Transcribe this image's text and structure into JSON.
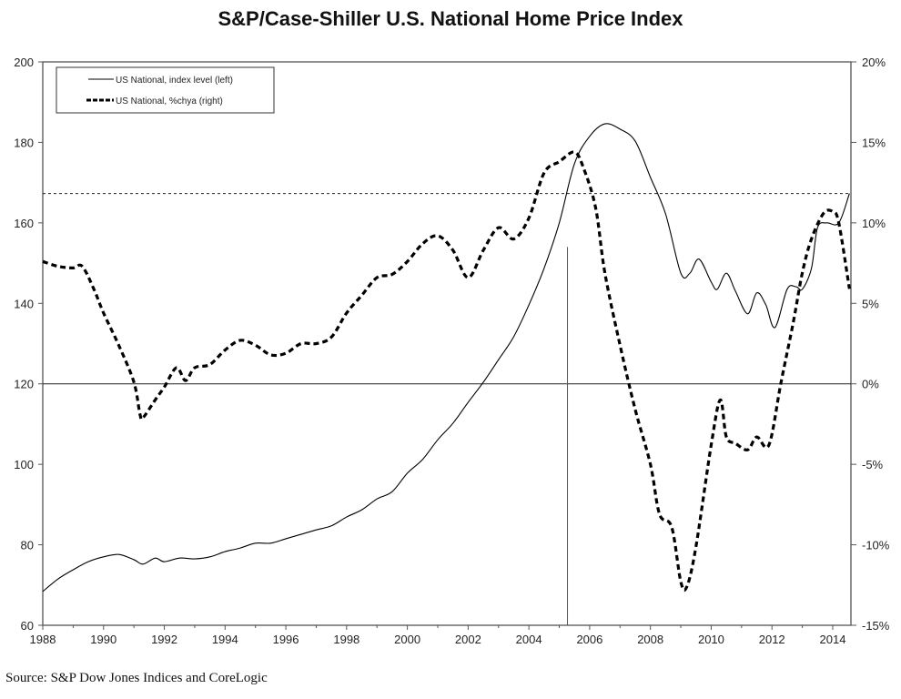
{
  "chart_data": {
    "type": "line",
    "title": "S&P/Case-Shiller U.S. National Home Price Index",
    "source": "Source: S&P Dow Jones Indices and CoreLogic",
    "legend_position": "top-left",
    "grid": false,
    "x_ticks": [
      "1988",
      "1990",
      "1992",
      "1994",
      "1996",
      "1998",
      "2000",
      "2002",
      "2004",
      "2006",
      "2008",
      "2010",
      "2012",
      "2014"
    ],
    "xlim": [
      1988,
      2014.6
    ],
    "y_left": {
      "ylim": [
        60,
        200
      ],
      "ticks": [
        "60",
        "80",
        "100",
        "120",
        "140",
        "160",
        "180",
        "200"
      ]
    },
    "y_right": {
      "ylim": [
        -15,
        20
      ],
      "ticks": [
        "-15%",
        "-10%",
        "-5%",
        "0%",
        "5%",
        "10%",
        "15%",
        "20%"
      ]
    },
    "reference_lines": [
      {
        "axis": "y_left",
        "value": 167.3,
        "style": "dotted"
      },
      {
        "axis": "y_left",
        "value": 120,
        "style": "solid"
      },
      {
        "axis": "x",
        "value": 2005.27,
        "style": "solid"
      }
    ],
    "series": [
      {
        "name": "US National, index level (left)",
        "axis": "left",
        "style": "solid",
        "x": [
          1988,
          1988.5,
          1989,
          1989.5,
          1990,
          1990.5,
          1991,
          1991.3,
          1991.7,
          1992,
          1992.5,
          1993,
          1993.5,
          1994,
          1994.5,
          1995,
          1995.5,
          1996,
          1996.5,
          1997,
          1997.5,
          1998,
          1998.5,
          1999,
          1999.5,
          2000,
          2000.5,
          2001,
          2001.5,
          2002,
          2002.5,
          2003,
          2003.5,
          2004,
          2004.5,
          2005,
          2005.5,
          2006,
          2006.5,
          2007,
          2007.5,
          2008,
          2008.5,
          2009,
          2009.3,
          2009.6,
          2010,
          2010.2,
          2010.5,
          2010.8,
          2011.2,
          2011.5,
          2011.8,
          2012.1,
          2012.5,
          2012.8,
          2013,
          2013.3,
          2013.5,
          2013.8,
          2014.2,
          2014.55
        ],
        "values": [
          68.4,
          71.5,
          73.8,
          75.8,
          77,
          77.6,
          76.3,
          75.2,
          76.7,
          75.8,
          76.7,
          76.5,
          77,
          78.3,
          79.2,
          80.4,
          80.4,
          81.5,
          82.6,
          83.7,
          84.7,
          86.9,
          88.7,
          91.4,
          93.2,
          97.8,
          101.2,
          106.1,
          110.2,
          115.4,
          120.4,
          126,
          131.7,
          139.6,
          148.7,
          160,
          174.7,
          181.5,
          184.6,
          183.3,
          180.3,
          171.3,
          162.2,
          147.5,
          147.5,
          151,
          145.3,
          143.5,
          147.5,
          143,
          137.4,
          142.6,
          139.6,
          134,
          143.5,
          144.1,
          143.5,
          148.7,
          158.8,
          160,
          160,
          167.3
        ]
      },
      {
        "name": "US National, %chya (right)",
        "axis": "right",
        "style": "dashed",
        "x": [
          1988,
          1988.5,
          1989,
          1989.3,
          1989.7,
          1990,
          1990.5,
          1991,
          1991.2,
          1991.3,
          1991.7,
          1992,
          1992.4,
          1992.7,
          1993,
          1993.5,
          1994,
          1994.5,
          1995,
          1995.5,
          1996,
          1996.5,
          1997,
          1997.5,
          1998,
          1998.5,
          1999,
          1999.5,
          2000,
          2000.5,
          2001,
          2001.5,
          2002,
          2002.5,
          2003,
          2003.5,
          2004,
          2004.5,
          2005,
          2005.5,
          2005.8,
          2006.2,
          2006.5,
          2007,
          2007.5,
          2008,
          2008.3,
          2008.7,
          2009,
          2009.2,
          2009.5,
          2010,
          2010.3,
          2010.5,
          2010.8,
          2011.2,
          2011.5,
          2011.9,
          2012.3,
          2012.7,
          2013,
          2013.3,
          2013.7,
          2014,
          2014.2,
          2014.55
        ],
        "values": [
          7.6,
          7.3,
          7.2,
          7.3,
          5.8,
          4.4,
          2.4,
          0.1,
          -1.9,
          -2.1,
          -1.0,
          -0.2,
          1.0,
          0.2,
          1.0,
          1.2,
          2.1,
          2.7,
          2.4,
          1.8,
          1.9,
          2.5,
          2.5,
          2.9,
          4.4,
          5.5,
          6.6,
          6.8,
          7.6,
          8.7,
          9.2,
          8.3,
          6.6,
          8.3,
          9.7,
          9.0,
          10.3,
          13.1,
          13.8,
          14.4,
          13.4,
          10.9,
          6.9,
          2.4,
          -1.6,
          -5.0,
          -8.1,
          -8.9,
          -12.3,
          -12.6,
          -10.1,
          -3.8,
          -1.0,
          -3.3,
          -3.7,
          -4.1,
          -3.3,
          -3.8,
          0.1,
          3.8,
          6.9,
          9.0,
          10.6,
          10.7,
          10.0,
          5.9
        ]
      }
    ]
  }
}
